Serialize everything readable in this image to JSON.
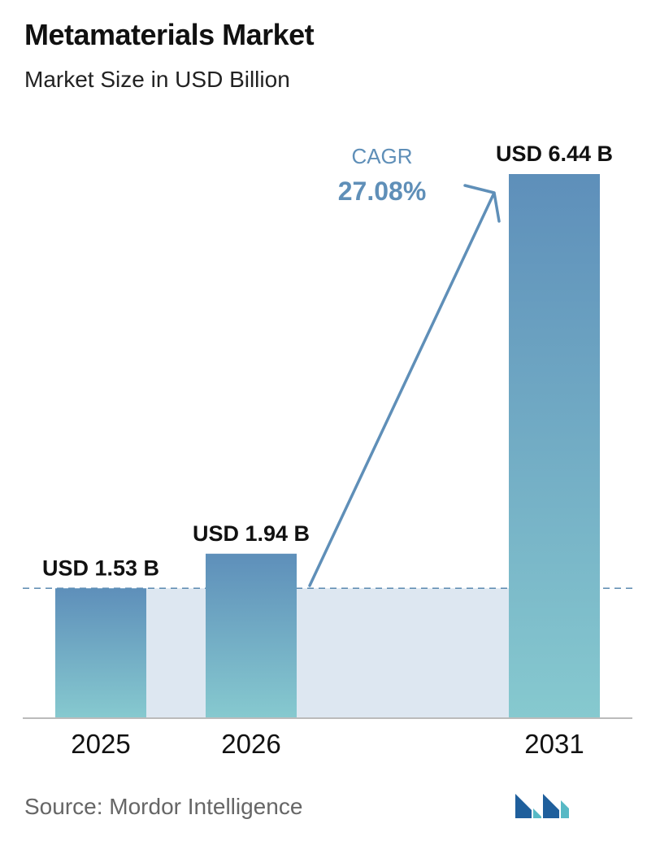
{
  "header": {
    "title": "Metamaterials Market",
    "subtitle": "Market Size in USD Billion"
  },
  "cagr": {
    "label": "CAGR",
    "value": "27.08%"
  },
  "footer": {
    "source": "Source:  Mordor Intelligence"
  },
  "colors": {
    "bar_top": "#5e8fba",
    "bar_bottom": "#86c9cf",
    "band": "#dde7f1",
    "arrow": "#5f8fb8",
    "dashed_line": "#5b8ab0",
    "axis": "#bbbbbb",
    "logo_dark": "#1f5f9c",
    "logo_light": "#57b9c5"
  },
  "chart_data": {
    "type": "bar",
    "categories": [
      "2025",
      "2026",
      "2031"
    ],
    "values": [
      1.53,
      1.94,
      6.44
    ],
    "value_labels": [
      "USD 1.53 B",
      "USD 1.94 B",
      "USD 6.44 B"
    ],
    "ylim": [
      0,
      6.44
    ],
    "grid": false,
    "reference_line": 1.53
  }
}
